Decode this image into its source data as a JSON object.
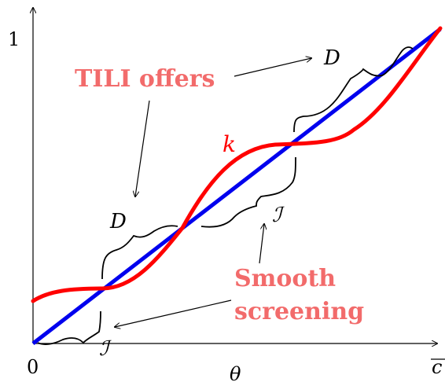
{
  "axes": {
    "y_tick": "1",
    "x_origin": "0",
    "x_label": "θ",
    "x_end_label": "c"
  },
  "labels": {
    "tili_offers": "TILI offers",
    "smooth_line1": "Smooth",
    "smooth_line2": "screening",
    "k": "k",
    "D_upper": "D",
    "D_lower": "D",
    "I_upper": "ℐ",
    "I_lower": "ℐ"
  },
  "colors": {
    "k_curve": "#ff0000",
    "diagonal": "#0000ee",
    "callout_text": "#f26b6b",
    "axis": "#000000"
  }
}
